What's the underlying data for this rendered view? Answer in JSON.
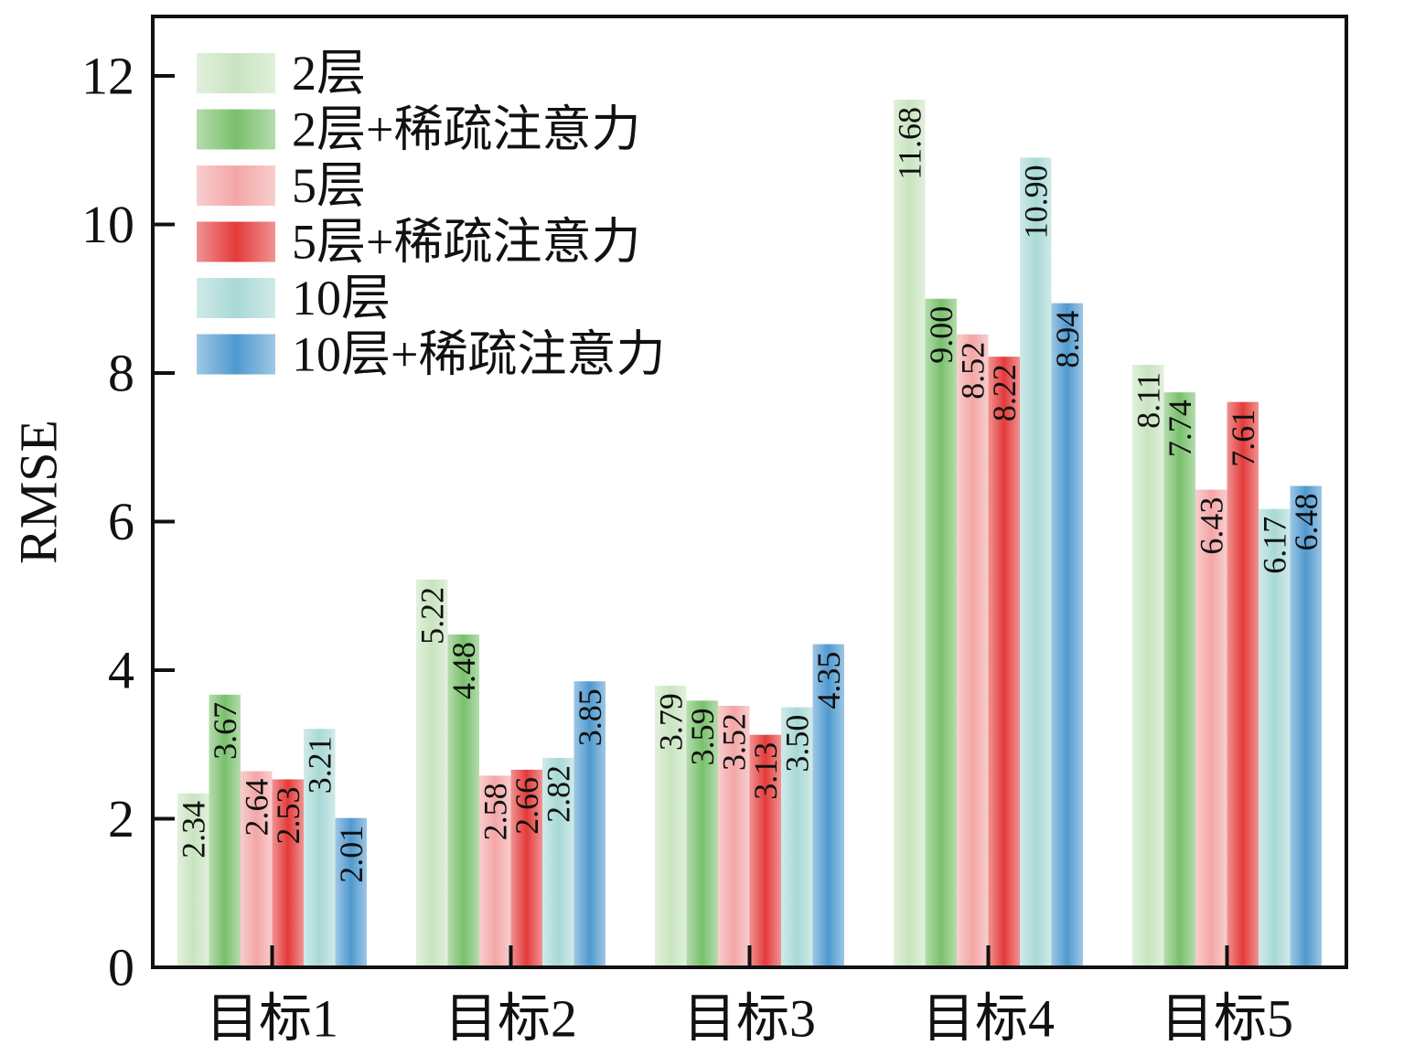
{
  "chart_data": {
    "type": "bar",
    "title": "",
    "xlabel": "",
    "ylabel": "RMSE",
    "ylim": [
      0,
      12.8
    ],
    "yticks": [
      0,
      2,
      4,
      6,
      8,
      10,
      12
    ],
    "categories": [
      "目标1",
      "目标2",
      "目标3",
      "目标4",
      "目标5"
    ],
    "legend_position": "top-left",
    "series": [
      {
        "name": "2层",
        "color": "#c9e4c0",
        "values": [
          2.34,
          5.22,
          3.79,
          11.68,
          8.11
        ]
      },
      {
        "name": "2层+稀疏注意力",
        "color": "#79c06b",
        "values": [
          3.67,
          4.48,
          3.59,
          9.0,
          7.74
        ]
      },
      {
        "name": "5层",
        "color": "#f3a6a6",
        "values": [
          2.64,
          2.58,
          3.52,
          8.52,
          6.43
        ]
      },
      {
        "name": "5层+稀疏注意力",
        "color": "#e43a3a",
        "values": [
          2.53,
          2.66,
          3.13,
          8.22,
          7.61
        ]
      },
      {
        "name": "10层",
        "color": "#a8d9d6",
        "values": [
          3.21,
          2.82,
          3.5,
          10.9,
          6.17
        ]
      },
      {
        "name": "10层+稀疏注意力",
        "color": "#4f99cf",
        "values": [
          2.01,
          3.85,
          4.35,
          8.94,
          6.48
        ]
      }
    ],
    "data_labels": [
      [
        "2.34",
        "5.22",
        "3.79",
        "11.68",
        "8.11"
      ],
      [
        "3.67",
        "4.48",
        "3.59",
        "9.00",
        "7.74"
      ],
      [
        "2.64",
        "2.58",
        "3.52",
        "8.52",
        "6.43"
      ],
      [
        "2.53",
        "2.66",
        "3.13",
        "8.22",
        "7.61"
      ],
      [
        "3.21",
        "2.82",
        "3.50",
        "10.90",
        "6.17"
      ],
      [
        "2.01",
        "3.85",
        "4.35",
        "8.94",
        "6.48"
      ]
    ]
  }
}
